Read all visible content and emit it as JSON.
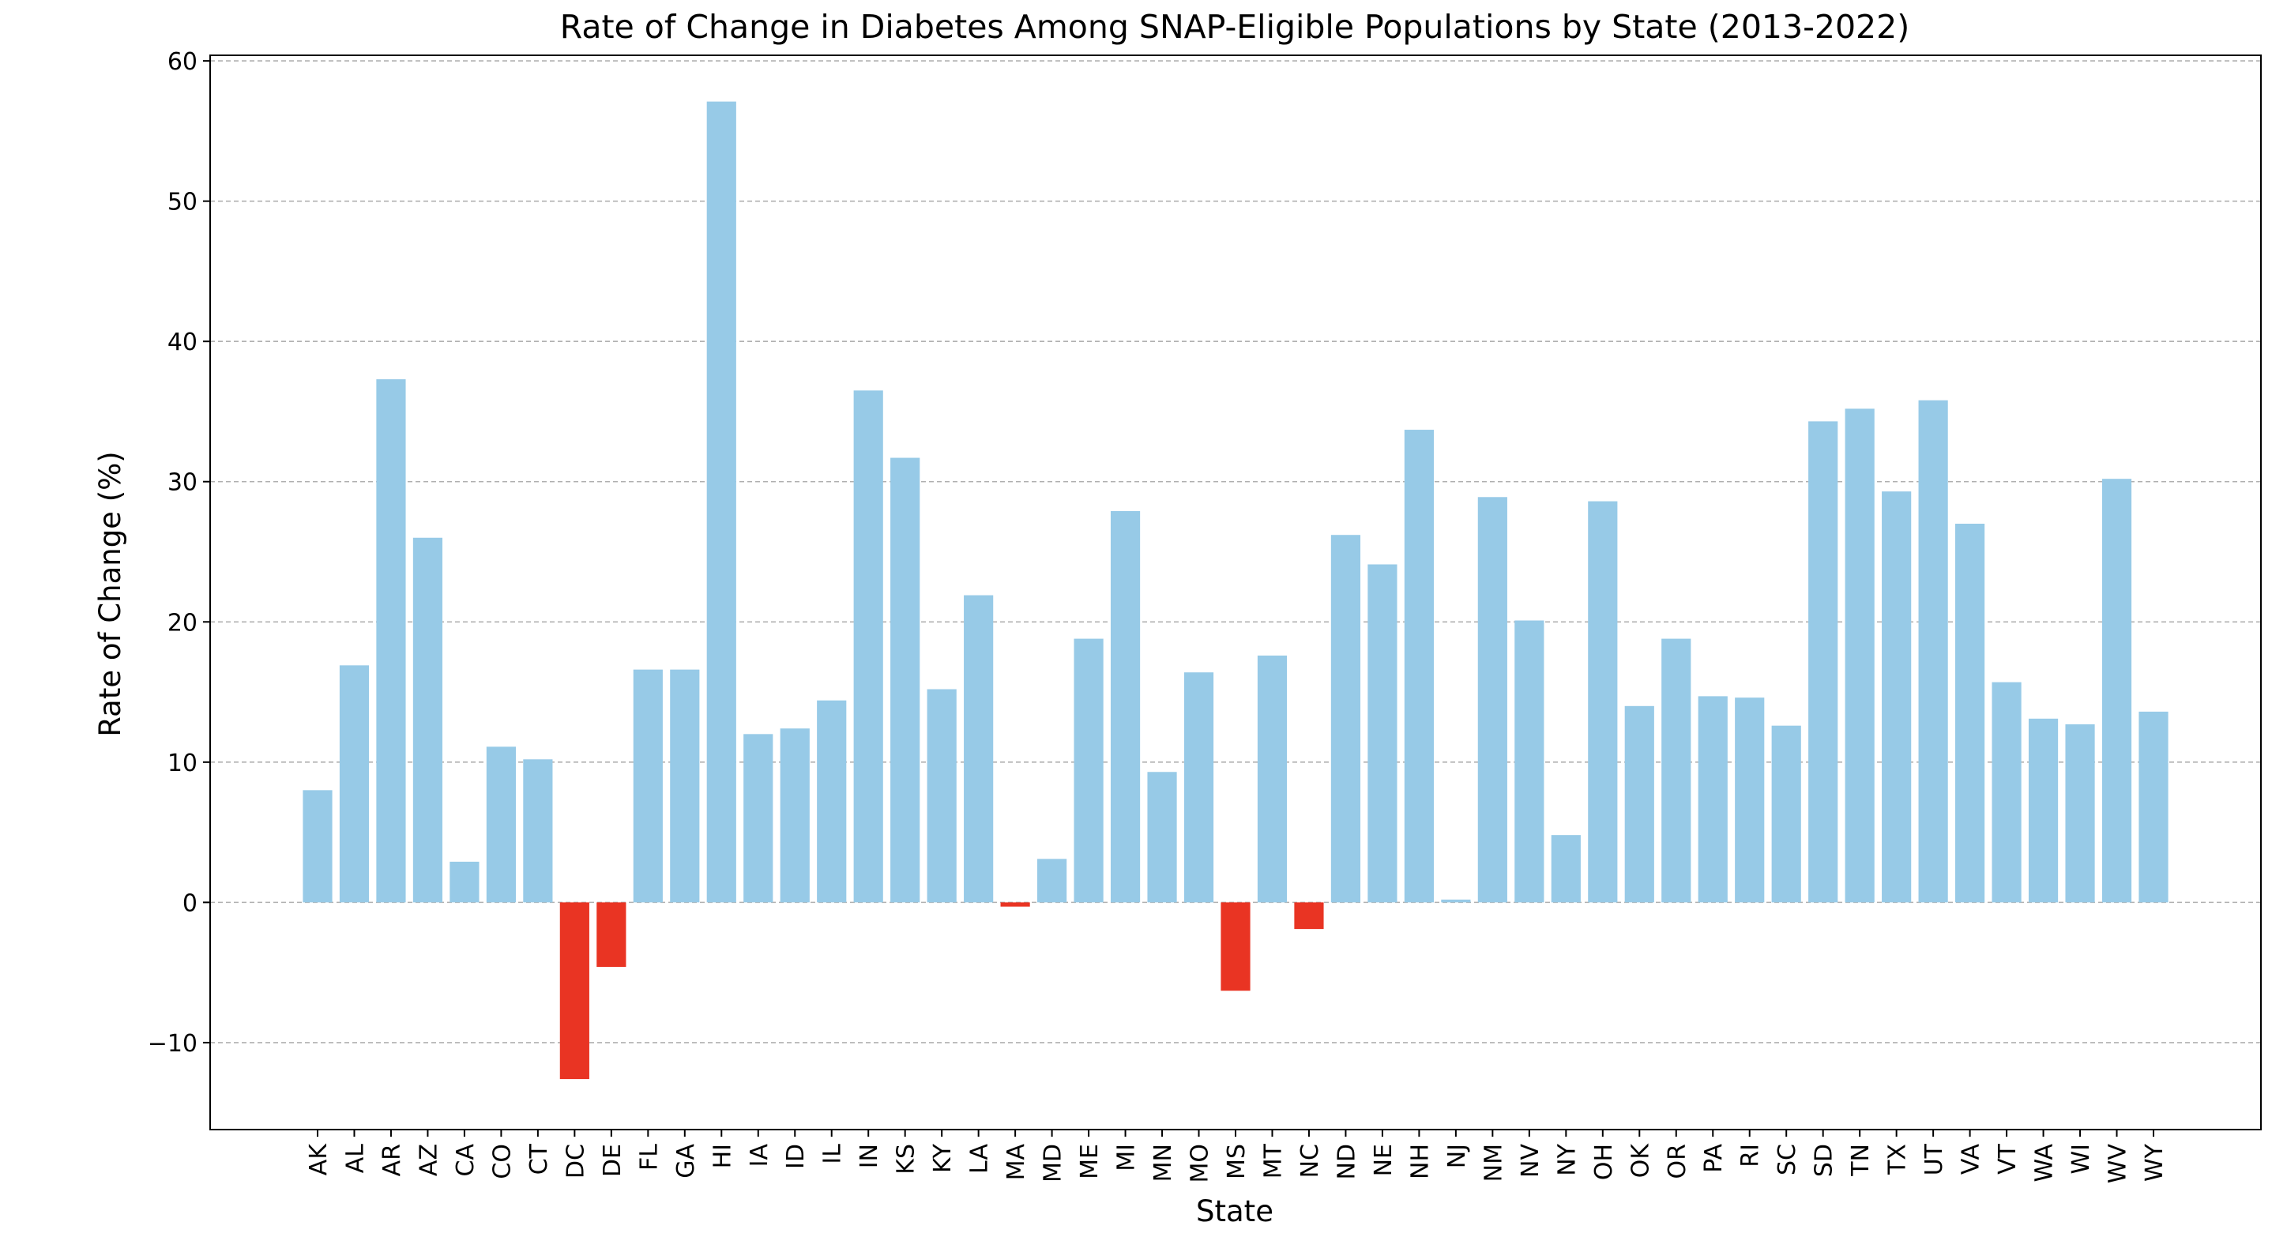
{
  "chart_data": {
    "type": "bar",
    "title": "Rate of Change in Diabetes Among SNAP-Eligible Populations by State (2013-2022)",
    "xlabel": "State",
    "ylabel": "Rate of Change (%)",
    "ylim": [
      -16.2,
      60.4
    ],
    "yticks": [
      -10,
      0,
      10,
      20,
      30,
      40,
      50,
      60
    ],
    "grid": "y-dashed",
    "legend": "none",
    "colors": {
      "positive": "#97cae7",
      "negative": "#e93423",
      "grid": "#b0b0b0",
      "axis": "#000000"
    },
    "categories": [
      "AK",
      "AL",
      "AR",
      "AZ",
      "CA",
      "CO",
      "CT",
      "DC",
      "DE",
      "FL",
      "GA",
      "HI",
      "IA",
      "ID",
      "IL",
      "IN",
      "KS",
      "KY",
      "LA",
      "MA",
      "MD",
      "ME",
      "MI",
      "MN",
      "MO",
      "MS",
      "MT",
      "NC",
      "ND",
      "NE",
      "NH",
      "NJ",
      "NM",
      "NV",
      "NY",
      "OH",
      "OK",
      "OR",
      "PA",
      "RI",
      "SC",
      "SD",
      "TN",
      "TX",
      "UT",
      "VA",
      "VT",
      "WA",
      "WI",
      "WV",
      "WY"
    ],
    "values": [
      8.0,
      16.9,
      37.3,
      26.0,
      2.9,
      11.1,
      10.2,
      -12.6,
      -4.6,
      16.6,
      16.6,
      57.1,
      12.0,
      12.4,
      14.4,
      36.5,
      31.7,
      15.2,
      21.9,
      -0.3,
      3.1,
      18.8,
      27.9,
      9.3,
      16.4,
      -6.3,
      17.6,
      -1.9,
      26.2,
      24.1,
      33.7,
      0.2,
      28.9,
      20.1,
      4.8,
      28.6,
      14.0,
      18.8,
      14.7,
      14.6,
      12.6,
      34.3,
      35.2,
      29.3,
      35.8,
      27.0,
      15.7,
      13.1,
      12.7,
      30.2,
      13.6
    ]
  }
}
